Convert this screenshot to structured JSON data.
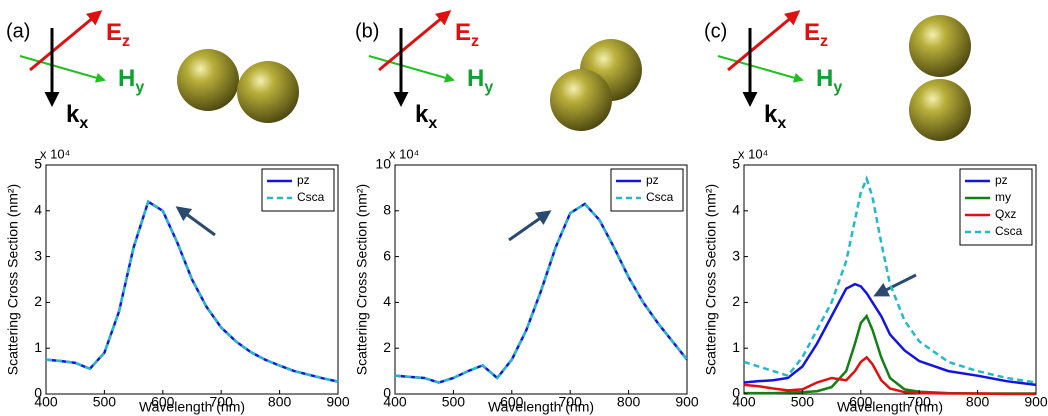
{
  "field_labels": [
    {
      "symbol": "E",
      "subscript": "z",
      "color": "#e01010"
    },
    {
      "symbol": "H",
      "subscript": "y",
      "color": "#10a030"
    },
    {
      "symbol": "k",
      "subscript": "x",
      "color": "#000000"
    }
  ],
  "chart_data": [
    {
      "type": "line",
      "panel": "(a)",
      "xlabel": "Wavelength (nm)",
      "ylabel": "Scattering Cross Section (nm²)",
      "multiplier": "x 10⁴",
      "xlim": [
        400,
        900
      ],
      "xticks": [
        400,
        500,
        600,
        700,
        800,
        900
      ],
      "ylim": [
        0,
        5
      ],
      "yticks": [
        0,
        1,
        2,
        3,
        4,
        5
      ],
      "legend": "upper right",
      "x": [
        400,
        425,
        450,
        475,
        500,
        525,
        550,
        575,
        600,
        625,
        650,
        675,
        700,
        725,
        750,
        775,
        800,
        825,
        850,
        875,
        900
      ],
      "series": [
        {
          "name": "pz",
          "color": "#1414e0",
          "dash": false,
          "values": [
            0.75,
            0.72,
            0.68,
            0.55,
            0.9,
            1.8,
            3.2,
            4.2,
            4.0,
            3.3,
            2.5,
            1.9,
            1.45,
            1.15,
            0.92,
            0.75,
            0.62,
            0.5,
            0.42,
            0.34,
            0.27
          ]
        },
        {
          "name": "Csca",
          "color": "#25b8c8",
          "dash": true,
          "values": [
            0.75,
            0.72,
            0.68,
            0.55,
            0.9,
            1.8,
            3.2,
            4.2,
            4.0,
            3.3,
            2.5,
            1.9,
            1.45,
            1.15,
            0.92,
            0.75,
            0.62,
            0.5,
            0.42,
            0.34,
            0.27
          ]
        }
      ]
    },
    {
      "type": "line",
      "panel": "(b)",
      "xlabel": "Wavelength (nm)",
      "ylabel": "Scattering Cross Section (nm²)",
      "multiplier": "x 10⁴",
      "xlim": [
        400,
        900
      ],
      "xticks": [
        400,
        500,
        600,
        700,
        800,
        900
      ],
      "ylim": [
        0,
        10
      ],
      "yticks": [
        0,
        2,
        4,
        6,
        8,
        10
      ],
      "legend": "upper right",
      "x": [
        400,
        425,
        450,
        475,
        500,
        525,
        550,
        575,
        600,
        625,
        650,
        675,
        700,
        725,
        750,
        775,
        800,
        825,
        850,
        875,
        900
      ],
      "series": [
        {
          "name": "pz",
          "color": "#1414e0",
          "dash": false,
          "values": [
            0.8,
            0.75,
            0.7,
            0.5,
            0.7,
            1.0,
            1.25,
            0.7,
            1.5,
            2.8,
            4.5,
            6.4,
            7.9,
            8.3,
            7.6,
            6.4,
            5.1,
            4.0,
            3.1,
            2.3,
            1.5
          ]
        },
        {
          "name": "Csca",
          "color": "#25b8c8",
          "dash": true,
          "values": [
            0.8,
            0.75,
            0.7,
            0.5,
            0.7,
            1.0,
            1.25,
            0.7,
            1.5,
            2.8,
            4.5,
            6.4,
            7.9,
            8.3,
            7.6,
            6.4,
            5.1,
            4.0,
            3.1,
            2.3,
            1.5
          ]
        }
      ]
    },
    {
      "type": "line",
      "panel": "(c)",
      "xlabel": "Wavelength (nm)",
      "ylabel": "Scattering Cross Section (nm²)",
      "multiplier": "x 10⁴",
      "xlim": [
        400,
        900
      ],
      "xticks": [
        400,
        500,
        600,
        700,
        800,
        900
      ],
      "ylim": [
        0,
        5
      ],
      "yticks": [
        0,
        1,
        2,
        3,
        4,
        5
      ],
      "legend": "upper right",
      "x": [
        400,
        425,
        450,
        475,
        500,
        525,
        550,
        575,
        590,
        600,
        610,
        620,
        635,
        650,
        675,
        700,
        750,
        800,
        850,
        900
      ],
      "series": [
        {
          "name": "pz",
          "color": "#1414e0",
          "dash": false,
          "values": [
            0.25,
            0.28,
            0.3,
            0.35,
            0.6,
            1.1,
            1.7,
            2.3,
            2.4,
            2.35,
            2.2,
            2.0,
            1.7,
            1.3,
            0.95,
            0.72,
            0.5,
            0.4,
            0.28,
            0.2
          ]
        },
        {
          "name": "my",
          "color": "#128012",
          "dash": false,
          "values": [
            0.02,
            0.02,
            0.02,
            0.03,
            0.04,
            0.06,
            0.15,
            0.5,
            1.1,
            1.55,
            1.7,
            1.4,
            0.8,
            0.35,
            0.1,
            0.05,
            0.02,
            0.01,
            0.01,
            0.01
          ]
        },
        {
          "name": "Qxz",
          "color": "#e01010",
          "dash": false,
          "values": [
            0.2,
            0.17,
            0.12,
            0.08,
            0.1,
            0.25,
            0.35,
            0.3,
            0.5,
            0.7,
            0.8,
            0.65,
            0.3,
            0.12,
            0.04,
            0.02,
            0.01,
            0.01,
            0,
            0
          ]
        },
        {
          "name": "Csca",
          "color": "#25b8c8",
          "dash": true,
          "values": [
            0.7,
            0.6,
            0.5,
            0.4,
            0.8,
            1.4,
            2.0,
            2.9,
            3.8,
            4.4,
            4.7,
            4.3,
            3.3,
            2.4,
            1.6,
            1.15,
            0.7,
            0.5,
            0.35,
            0.25
          ]
        }
      ]
    }
  ]
}
